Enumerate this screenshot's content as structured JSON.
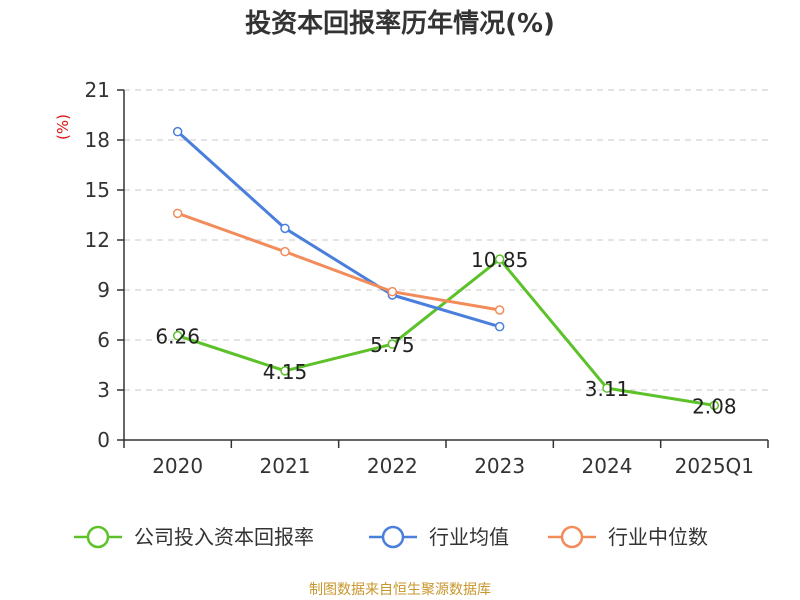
{
  "chart_data": {
    "type": "line",
    "title": "投资本回报率历年情况(%)",
    "ylabel": "(%)",
    "xlabel": "",
    "categories": [
      "2020",
      "2021",
      "2022",
      "2023",
      "2024",
      "2025Q1"
    ],
    "ylim": [
      0,
      21
    ],
    "yticks": [
      0,
      3,
      6,
      9,
      12,
      15,
      18,
      21
    ],
    "grid": true,
    "legend_position": "bottom",
    "series": [
      {
        "name": "公司投入资本回报率",
        "color": "#5dc22a",
        "values": [
          6.26,
          4.15,
          5.75,
          10.85,
          3.11,
          2.08
        ],
        "show_labels": true
      },
      {
        "name": "行业均值",
        "color": "#4a7fdb",
        "values": [
          18.5,
          12.7,
          8.7,
          6.8,
          null,
          null
        ],
        "show_labels": false
      },
      {
        "name": "行业中位数",
        "color": "#f28c5a",
        "values": [
          13.6,
          11.3,
          8.9,
          7.8,
          null,
          null
        ],
        "show_labels": false
      }
    ],
    "data_labels": [
      "6.26",
      "4.15",
      "5.75",
      "10.85",
      "3.11",
      "2.08"
    ]
  },
  "source": "制图数据来自恒生聚源数据库"
}
